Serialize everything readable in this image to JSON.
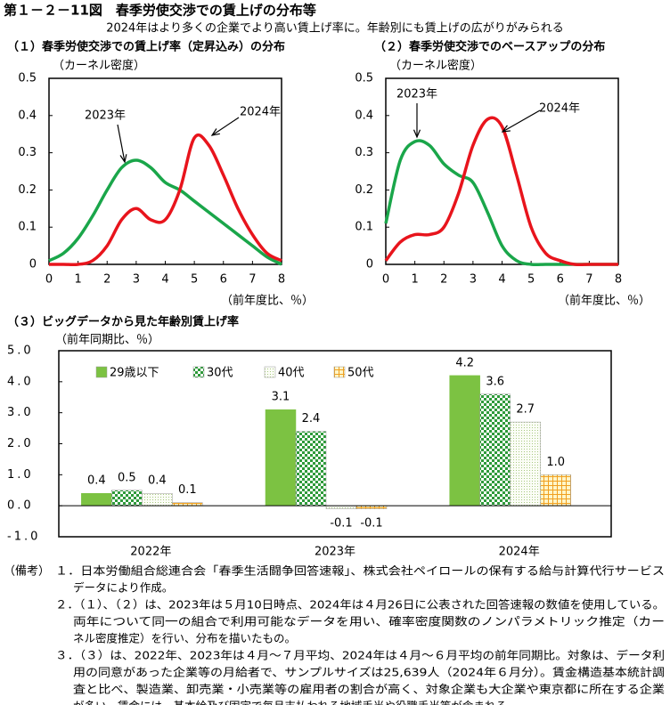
{
  "header": {
    "title": "第１－２－11図　春季労使交渉での賃上げの分布等",
    "subtitle": "2024年はより多くの企業でより高い賃上げ率に。年齢別にも賃上げの広がりがみられる"
  },
  "chart_data": [
    {
      "type": "line",
      "title": "（１）春季労使交渉での賃上げ率（定昇込み）の分布",
      "y_label": "（カーネル密度）",
      "x_label": "（前年度比、％）",
      "x": [
        0,
        0.5,
        1,
        1.5,
        2,
        2.5,
        3,
        3.5,
        4,
        4.5,
        5,
        5.5,
        6,
        6.5,
        7,
        7.5,
        8
      ],
      "series": [
        {
          "name": "2023年",
          "color": "#1aa64a",
          "values": [
            0.01,
            0.03,
            0.07,
            0.13,
            0.2,
            0.26,
            0.28,
            0.26,
            0.22,
            0.2,
            0.17,
            0.14,
            0.11,
            0.08,
            0.05,
            0.02,
            0
          ]
        },
        {
          "name": "2024年",
          "color": "#e8141c",
          "values": [
            0,
            0,
            0,
            0.01,
            0.05,
            0.12,
            0.15,
            0.12,
            0.12,
            0.2,
            0.34,
            0.32,
            0.24,
            0.15,
            0.08,
            0.03,
            0.01
          ]
        }
      ],
      "annotations": [
        "2023年",
        "2024年"
      ],
      "xlim": [
        0,
        8
      ],
      "ylim": [
        0,
        0.5
      ],
      "xticks": [
        0,
        1,
        2,
        3,
        4,
        5,
        6,
        7,
        8
      ],
      "yticks": [
        0,
        0.1,
        0.2,
        0.3,
        0.4,
        0.5
      ]
    },
    {
      "type": "line",
      "title": "（２）春季労使交渉でのベースアップの分布",
      "y_label": "（カーネル密度）",
      "x_label": "（前年度比、％）",
      "x": [
        0,
        0.5,
        1,
        1.5,
        2,
        2.5,
        3,
        3.5,
        4,
        4.5,
        5,
        5.5,
        6,
        6.5,
        7,
        7.5,
        8
      ],
      "series": [
        {
          "name": "2023年",
          "color": "#1aa64a",
          "values": [
            0.11,
            0.28,
            0.33,
            0.32,
            0.27,
            0.24,
            0.22,
            0.14,
            0.05,
            0.01,
            0,
            0,
            0,
            0,
            0,
            0,
            0
          ]
        },
        {
          "name": "2024年",
          "color": "#e8141c",
          "values": [
            0.01,
            0.06,
            0.08,
            0.08,
            0.1,
            0.19,
            0.32,
            0.39,
            0.37,
            0.24,
            0.1,
            0.03,
            0.01,
            0,
            0,
            0,
            0
          ]
        }
      ],
      "annotations": [
        "2023年",
        "2024年"
      ],
      "xlim": [
        0,
        8
      ],
      "ylim": [
        0,
        0.5
      ],
      "xticks": [
        0,
        1,
        2,
        3,
        4,
        5,
        6,
        7,
        8
      ],
      "yticks": [
        0,
        0.1,
        0.2,
        0.3,
        0.4,
        0.5
      ]
    },
    {
      "type": "bar",
      "title": "（３）ビッグデータから見た年齢別賃上げ率",
      "y_label": "（前年同期比、％）",
      "categories": [
        "2022年",
        "2023年",
        "2024年"
      ],
      "series": [
        {
          "name": "29歳以下",
          "color": "#7cc242",
          "fill_style": "solid",
          "values": [
            0.4,
            3.1,
            4.2
          ]
        },
        {
          "name": "30代",
          "color": "#2e9a3a",
          "fill_style": "checker",
          "values": [
            0.5,
            2.4,
            3.6
          ]
        },
        {
          "name": "40代",
          "color": "#a8c880",
          "fill_style": "dots",
          "values": [
            0.4,
            -0.1,
            2.7
          ]
        },
        {
          "name": "50代",
          "color": "#f0a020",
          "fill_style": "grid",
          "values": [
            0.1,
            -0.1,
            1.0
          ],
          "value_labels": [
            "0.1",
            "-0.1",
            "1.0"
          ]
        }
      ],
      "legend": "top-left",
      "ylim": [
        -1,
        5
      ],
      "yticks": [
        {
          "value": -1,
          "label": "-1.0"
        },
        {
          "value": 0,
          "label": "0.0"
        },
        {
          "value": 1,
          "label": "1.0"
        },
        {
          "value": 2,
          "label": "2.0"
        },
        {
          "value": 3,
          "label": "3.0"
        },
        {
          "value": 4,
          "label": "4.0"
        },
        {
          "value": 5,
          "label": "5.0"
        }
      ]
    }
  ],
  "notes": {
    "label": "（備考）",
    "items": [
      [
        "１．日本労働組合総連合会「春季生活闘争回答速報」、株式会社ペイロールの保有する給与計算代行サービス",
        "データにより作成。"
      ],
      [
        "２．（１）、（２）は、2023年は５月10日時点、2024年は４月26日に公表された回答速報の数値を使用している。",
        "両年について同一の組合で利用可能なデータを用い、確率密度関数のノンパラメトリック推定（カー",
        "ネル密度推定）を行い、分布を描いたもの。"
      ],
      [
        "３．（３）は、2022年、2023年は４月～７月平均、2024年は４月～６月平均の前年同期比。対象は、データ利",
        "用の同意があった企業等の月給者で、サンプルサイズは25,639人（2024年６月分）。賃金構造基本統計調",
        "査と比べ、製造業、卸売業・小売業等の雇用者の割合が高く、対象企業も大企業や東京都に所在する企業",
        "が多い。賃金には、基本給及び固定で毎月支払われる地域手当や役職手当等が含まれる。"
      ]
    ]
  }
}
